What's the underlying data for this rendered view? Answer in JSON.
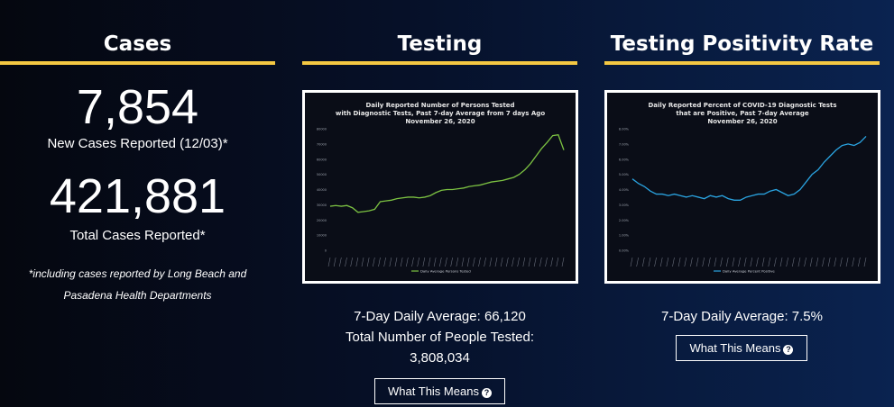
{
  "cases": {
    "title": "Cases",
    "new_cases": "7,854",
    "new_cases_label": "New Cases Reported (12/03)*",
    "total_cases": "421,881",
    "total_cases_label": "Total Cases Reported*",
    "note_line1": "*including cases reported by Long Beach and",
    "note_line2": "Pasadena Health Departments"
  },
  "testing": {
    "title": "Testing",
    "chart_title_1": "Daily Reported Number of Persons Tested",
    "chart_title_2": "with Diagnostic Tests, Past 7-day Average from 7 days Ago",
    "chart_title_3": "November 26, 2020",
    "legend": "Daily Average Persons Tested",
    "stat1": "7-Day Daily Average: 66,120",
    "stat2": "Total Number of People Tested:",
    "stat3": "3,808,034",
    "button": "What This Means"
  },
  "positivity": {
    "title": "Testing Positivity Rate",
    "chart_title_1": "Daily Reported Percent of COVID-19 Diagnostic Tests",
    "chart_title_2": "that are Positive, Past 7-day Average",
    "chart_title_3": "November 26, 2020",
    "legend": "Daily Average Percent Positive",
    "stat1": "7-Day Daily Average: 7.5%",
    "button": "What This Means"
  },
  "colors": {
    "accent": "#f5c842",
    "testing_line": "#7cc242",
    "positivity_line": "#2aa3e0"
  },
  "chart_data": [
    {
      "type": "line",
      "title": "Daily Reported Number of Persons Tested with Diagnostic Tests, Past 7-day Average from 7 days Ago November 26, 2020",
      "ylim": [
        0,
        80000
      ],
      "yticks": [
        "0",
        "10000",
        "20000",
        "30000",
        "40000",
        "50000",
        "60000",
        "70000",
        "80000"
      ],
      "series": [
        {
          "name": "Daily Average Persons Tested",
          "values": [
            29000,
            29500,
            29000,
            29500,
            28000,
            25000,
            25500,
            26000,
            27000,
            32000,
            32500,
            33000,
            34000,
            34500,
            35000,
            35000,
            34500,
            35000,
            36000,
            38000,
            39500,
            40000,
            40000,
            40500,
            41000,
            42000,
            42500,
            43000,
            44000,
            45000,
            45500,
            46000,
            47000,
            48000,
            50000,
            53000,
            57000,
            62000,
            67000,
            71000,
            75500,
            76000,
            66000
          ]
        }
      ]
    },
    {
      "type": "line",
      "title": "Daily Reported Percent of COVID-19 Diagnostic Tests that are Positive, Past 7-day Average November 26, 2020",
      "ylim": [
        0,
        8
      ],
      "yticks": [
        "0.00%",
        "1.00%",
        "2.00%",
        "3.00%",
        "4.00%",
        "5.00%",
        "6.00%",
        "7.00%",
        "8.00%"
      ],
      "series": [
        {
          "name": "Daily Average Percent Positive",
          "values": [
            4.7,
            4.4,
            4.2,
            3.9,
            3.7,
            3.7,
            3.6,
            3.7,
            3.6,
            3.5,
            3.6,
            3.5,
            3.4,
            3.6,
            3.5,
            3.6,
            3.4,
            3.3,
            3.3,
            3.5,
            3.6,
            3.7,
            3.7,
            3.9,
            4.0,
            3.8,
            3.6,
            3.7,
            4.0,
            4.5,
            5.0,
            5.3,
            5.8,
            6.2,
            6.6,
            6.9,
            7.0,
            6.9,
            7.1,
            7.5
          ]
        }
      ]
    }
  ]
}
